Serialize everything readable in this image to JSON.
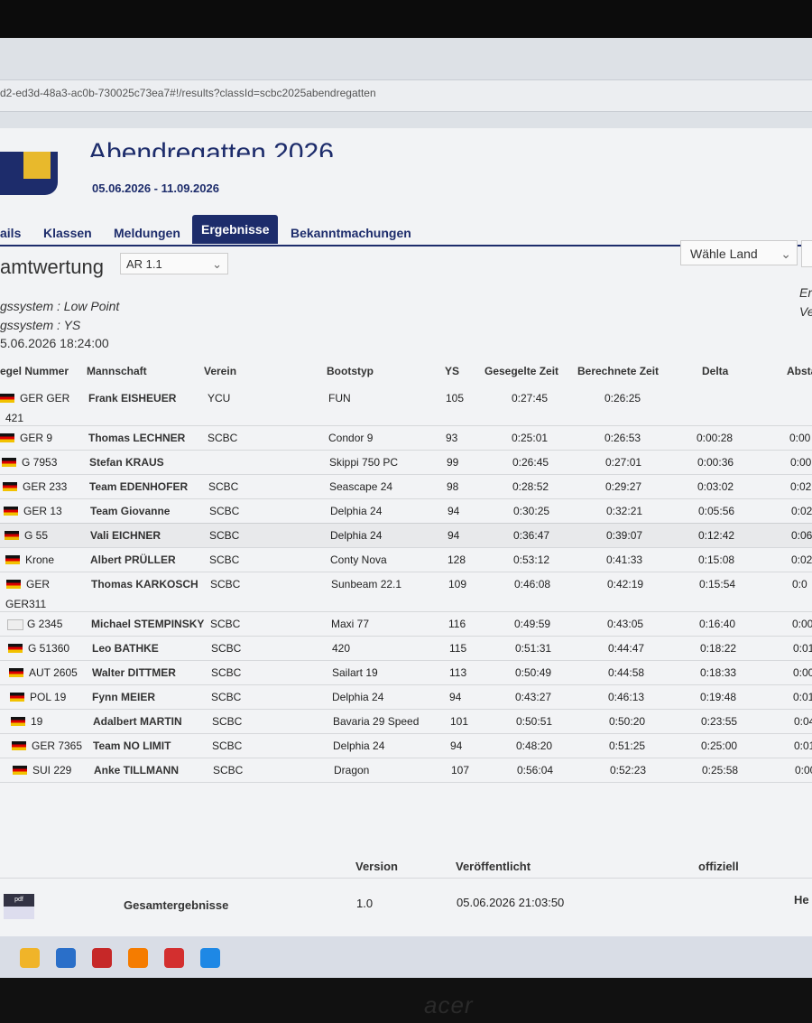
{
  "browser": {
    "url": "d2-ed3d-48a3-ac0b-730025c73ea7#!/results?classId=scbc2025abendregatten"
  },
  "header": {
    "title": "Abendregatten 2026",
    "dates": "05.06.2026 - 11.09.2026"
  },
  "nav": [
    "ails",
    "Klassen",
    "Meldungen",
    "Ergebnisse",
    "Bekanntmachungen"
  ],
  "section": {
    "title": "amtwertung",
    "race_select": "AR 1.1",
    "country_select": "Wähle Land"
  },
  "info": [
    "gssystem : Low Point",
    "gssystem : YS",
    "5.06.2026 18:24:00"
  ],
  "info_right": [
    "Er",
    "Ve"
  ],
  "table": {
    "columns": [
      "egel Nummer",
      "Mannschaft",
      "Verein",
      "Bootstyp",
      "YS",
      "Gesegelte Zeit",
      "Berechnete Zeit",
      "Delta",
      "Absta"
    ],
    "rows": [
      {
        "sail": "GER GER",
        "sail2": "421",
        "crew": "Frank EISHEUER",
        "club": "YCU",
        "boat": "FUN",
        "ys": "105",
        "sailed": "0:27:45",
        "computed": "0:26:25"
      },
      {
        "sail": "GER 9",
        "crew": "Thomas LECHNER",
        "club": "SCBC",
        "boat": "Condor 9",
        "ys": "93",
        "sailed": "0:25:01",
        "computed": "0:26:53",
        "delta": "0:00:28",
        "gap": "0:00"
      },
      {
        "sail": "G 7953",
        "crew": "Stefan KRAUS",
        "boat": "Skippi 750 PC",
        "ys": "99",
        "sailed": "0:26:45",
        "computed": "0:27:01",
        "delta": "0:00:36",
        "gap": "0:00"
      },
      {
        "sail": "GER 233",
        "crew": "Team EDENHOFER",
        "club": "SCBC",
        "boat": "Seascape 24",
        "ys": "98",
        "sailed": "0:28:52",
        "computed": "0:29:27",
        "delta": "0:03:02",
        "gap": "0:02"
      },
      {
        "sail": "GER 13",
        "crew": "Team Giovanne",
        "club": "SCBC",
        "boat": "Delphia 24",
        "ys": "94",
        "sailed": "0:30:25",
        "computed": "0:32:21",
        "delta": "0:05:56",
        "gap": "0:02"
      },
      {
        "sail": "G 55",
        "crew": "Vali EICHNER",
        "club": "SCBC",
        "boat": "Delphia 24",
        "ys": "94",
        "sailed": "0:36:47",
        "computed": "0:39:07",
        "delta": "0:12:42",
        "gap": "0:06"
      },
      {
        "sail": "Krone",
        "crew": "Albert PRÜLLER",
        "club": "SCBC",
        "boat": "Conty Nova",
        "ys": "128",
        "sailed": "0:53:12",
        "computed": "0:41:33",
        "delta": "0:15:08",
        "gap": "0:02"
      },
      {
        "sail": "GER",
        "sail2": "GER311",
        "crew": "Thomas KARKOSCH",
        "club": "SCBC",
        "boat": "Sunbeam 22.1",
        "ys": "109",
        "sailed": "0:46:08",
        "computed": "0:42:19",
        "delta": "0:15:54",
        "gap": "0:0"
      },
      {
        "sail": "G 2345",
        "crew": "Michael STEMPINSKY",
        "club": "SCBC",
        "boat": "Maxi 77",
        "ys": "116",
        "sailed": "0:49:59",
        "computed": "0:43:05",
        "delta": "0:16:40",
        "gap": "0:00"
      },
      {
        "sail": "G 51360",
        "crew": "Leo BATHKE",
        "club": "SCBC",
        "boat": "420",
        "ys": "115",
        "sailed": "0:51:31",
        "computed": "0:44:47",
        "delta": "0:18:22",
        "gap": "0:01"
      },
      {
        "sail": "AUT 2605",
        "crew": "Walter DITTMER",
        "club": "SCBC",
        "boat": "Sailart 19",
        "ys": "113",
        "sailed": "0:50:49",
        "computed": "0:44:58",
        "delta": "0:18:33",
        "gap": "0:00"
      },
      {
        "sail": "POL 19",
        "crew": "Fynn MEIER",
        "club": "SCBC",
        "boat": "Delphia 24",
        "ys": "94",
        "sailed": "0:43:27",
        "computed": "0:46:13",
        "delta": "0:19:48",
        "gap": "0:01"
      },
      {
        "sail": "19",
        "crew": "Adalbert MARTIN",
        "club": "SCBC",
        "boat": "Bavaria 29 Speed",
        "ys": "101",
        "sailed": "0:50:51",
        "computed": "0:50:20",
        "delta": "0:23:55",
        "gap": "0:04"
      },
      {
        "sail": "GER 7365",
        "crew": "Team NO LIMIT",
        "club": "SCBC",
        "boat": "Delphia 24",
        "ys": "94",
        "sailed": "0:48:20",
        "computed": "0:51:25",
        "delta": "0:25:00",
        "gap": "0:01"
      },
      {
        "sail": "SUI 229",
        "crew": "Anke TILLMANN",
        "club": "SCBC",
        "boat": "Dragon",
        "ys": "107",
        "sailed": "0:56:04",
        "computed": "0:52:23",
        "delta": "0:25:58",
        "gap": "0:00"
      }
    ]
  },
  "documents": {
    "columns": [
      "Version",
      "Veröffentlicht",
      "offiziell"
    ],
    "rows": [
      {
        "icon": "pdf",
        "name": "Gesamtergebnisse",
        "version": "1.0",
        "published": "05.06.2026 21:03:50",
        "official": "He"
      }
    ]
  },
  "bezel": {
    "brand": "acer"
  }
}
